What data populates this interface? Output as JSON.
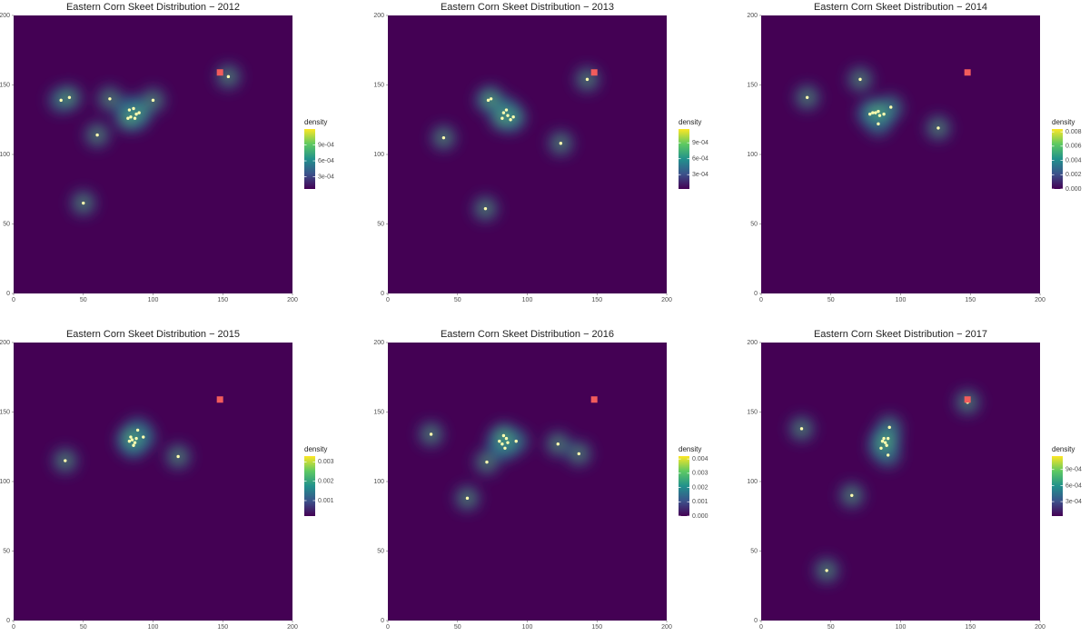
{
  "chart_data": [
    {
      "type": "density",
      "title": "Eastern Corn Skeet Distribution − 2012",
      "x": [
        34,
        40,
        69,
        100,
        60,
        50,
        83,
        86,
        88,
        84,
        87,
        90,
        82,
        154
      ],
      "values": [
        139,
        141,
        140,
        139,
        114,
        65,
        132,
        133,
        129,
        127,
        126,
        130,
        126,
        156
      ],
      "point_color": "#ffffb0",
      "target": {
        "x": 148,
        "y": 159,
        "color": "#f25c5c"
      },
      "xlim": [
        0,
        200
      ],
      "ylim": [
        0,
        200
      ],
      "xticks": [
        0,
        50,
        100,
        150,
        200
      ],
      "yticks": [
        0,
        50,
        100,
        150,
        200
      ],
      "colorbar": {
        "title": "density",
        "lim": [
          7e-05,
          0.0012
        ],
        "ticks": [
          {
            "value": 0.0003,
            "label": "3e-04"
          },
          {
            "value": 0.0006,
            "label": "6e-04"
          },
          {
            "value": 0.0009,
            "label": "9e-04"
          }
        ]
      }
    },
    {
      "type": "density",
      "title": "Eastern Corn Skeet Distribution − 2013",
      "x": [
        40,
        70,
        72,
        74,
        124,
        143,
        86,
        83,
        88,
        85,
        90,
        82
      ],
      "values": [
        112,
        61,
        139,
        140,
        108,
        154,
        128,
        130,
        125,
        132,
        127,
        126
      ],
      "point_color": "#ffffb0",
      "target": {
        "x": 148,
        "y": 159,
        "color": "#f25c5c"
      },
      "xlim": [
        0,
        200
      ],
      "ylim": [
        0,
        200
      ],
      "xticks": [
        0,
        50,
        100,
        150,
        200
      ],
      "yticks": [
        0,
        50,
        100,
        150,
        200
      ],
      "colorbar": {
        "title": "density",
        "lim": [
          3e-05,
          0.00116
        ],
        "ticks": [
          {
            "value": 0.0003,
            "label": "3e-04"
          },
          {
            "value": 0.0006,
            "label": "6e-04"
          },
          {
            "value": 0.0009,
            "label": "9e-04"
          }
        ]
      }
    },
    {
      "type": "density",
      "title": "Eastern Corn Skeet Distribution − 2014",
      "x": [
        33,
        71,
        127,
        84,
        93,
        78,
        82,
        85,
        88,
        80,
        84
      ],
      "values": [
        141,
        154,
        119,
        122,
        134,
        129,
        130,
        128,
        129,
        130,
        131
      ],
      "point_color": "#ffffb0",
      "target": {
        "x": 148,
        "y": 159,
        "color": "#f25c5c"
      },
      "xlim": [
        0,
        200
      ],
      "ylim": [
        0,
        200
      ],
      "xticks": [
        0,
        50,
        100,
        150,
        200
      ],
      "yticks": [
        0,
        50,
        100,
        150,
        200
      ],
      "colorbar": {
        "title": "density",
        "lim": [
          0,
          0.0084
        ],
        "ticks": [
          {
            "value": 0,
            "label": "0.000"
          },
          0.002,
          0.004,
          0.006,
          0.008
        ]
      }
    },
    {
      "type": "density",
      "title": "Eastern Corn Skeet Distribution − 2015",
      "x": [
        37,
        118,
        89,
        93,
        85,
        87,
        83,
        86,
        88,
        84
      ],
      "values": [
        115,
        118,
        137,
        132,
        130,
        128,
        129,
        126,
        131,
        132
      ],
      "point_color": "#ffffb0",
      "target": {
        "x": 148,
        "y": 159,
        "color": "#f25c5c"
      },
      "xlim": [
        0,
        200
      ],
      "ylim": [
        0,
        200
      ],
      "xticks": [
        0,
        50,
        100,
        150,
        200
      ],
      "yticks": [
        0,
        50,
        100,
        150,
        200
      ],
      "colorbar": {
        "title": "density",
        "lim": [
          0.0002,
          0.0033
        ],
        "ticks": [
          0.001,
          0.002,
          0.003
        ]
      }
    },
    {
      "type": "density",
      "title": "Eastern Corn Skeet Distribution − 2016",
      "x": [
        31,
        57,
        71,
        92,
        122,
        137,
        82,
        85,
        84,
        80,
        86,
        83
      ],
      "values": [
        134,
        88,
        114,
        129,
        127,
        120,
        127,
        131,
        124,
        129,
        128,
        133
      ],
      "point_color": "#ffffb0",
      "target": {
        "x": 148,
        "y": 159,
        "color": "#f25c5c"
      },
      "xlim": [
        0,
        200
      ],
      "ylim": [
        0,
        200
      ],
      "xticks": [
        0,
        50,
        100,
        150,
        200
      ],
      "yticks": [
        0,
        50,
        100,
        150,
        200
      ],
      "colorbar": {
        "title": "density",
        "lim": [
          0,
          0.0042
        ],
        "ticks": [
          {
            "value": 0,
            "label": "0.000"
          },
          0.001,
          0.002,
          0.003,
          0.004
        ]
      }
    },
    {
      "type": "density",
      "title": "Eastern Corn Skeet Distribution − 2017",
      "x": [
        29,
        47,
        65,
        92,
        91,
        148,
        87,
        90,
        88,
        86,
        91,
        89
      ],
      "values": [
        138,
        36,
        90,
        139,
        119,
        157,
        129,
        126,
        131,
        124,
        131,
        128
      ],
      "point_color": "#ffffb0",
      "target": {
        "x": 148,
        "y": 159,
        "color": "#f25c5c"
      },
      "xlim": [
        0,
        200
      ],
      "ylim": [
        0,
        200
      ],
      "xticks": [
        0,
        50,
        100,
        150,
        200
      ],
      "yticks": [
        0,
        50,
        100,
        150,
        200
      ],
      "colorbar": {
        "title": "density",
        "lim": [
          3e-05,
          0.00115
        ],
        "ticks": [
          {
            "value": 0.0003,
            "label": "3e-04"
          },
          {
            "value": 0.0006,
            "label": "6e-04"
          },
          {
            "value": 0.0009,
            "label": "9e-04"
          }
        ]
      }
    }
  ]
}
